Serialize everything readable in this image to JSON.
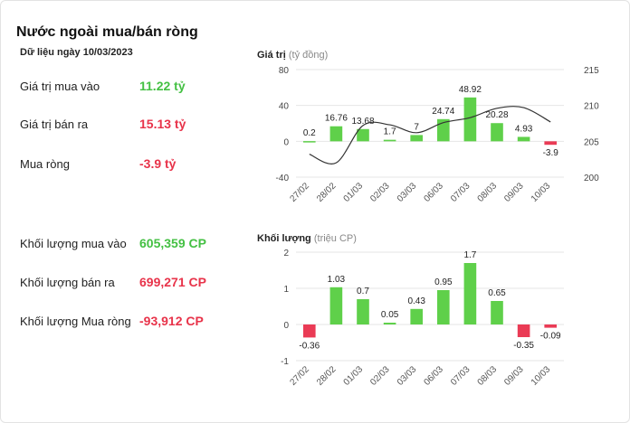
{
  "title": "Nước ngoài mua/bán ròng",
  "date_label": "Dữ liệu ngày 10/03/2023",
  "stats": [
    {
      "label": "Giá trị mua vào",
      "value": "11.22 tỷ",
      "tone": "pos"
    },
    {
      "label": "Giá trị bán ra",
      "value": "15.13 tỷ",
      "tone": "neg"
    },
    {
      "label": "Mua ròng",
      "value": "-3.9 tỷ",
      "tone": "neg"
    },
    {
      "label": "Khối lượng mua vào",
      "value": "605,359 CP",
      "tone": "pos"
    },
    {
      "label": "Khối lượng bán ra",
      "value": "699,271 CP",
      "tone": "neg"
    },
    {
      "label": "Khối lượng Mua ròng",
      "value": "-93,912 CP",
      "tone": "neg"
    }
  ],
  "colors": {
    "positive": "#5fd04a",
    "negative": "#ea3b55",
    "line": "#333333",
    "grid": "#e6e6e6"
  },
  "chart_data": [
    {
      "type": "bar",
      "title": "Giá trị",
      "unit": "(tỷ đồng)",
      "categories": [
        "27/02",
        "28/02",
        "01/03",
        "02/03",
        "03/03",
        "06/03",
        "07/03",
        "08/03",
        "09/03",
        "10/03"
      ],
      "values": [
        0.2,
        16.76,
        13.68,
        1.7,
        7,
        24.74,
        48.92,
        20.28,
        4.93,
        -3.9
      ],
      "value_labels": [
        "0.2",
        "16.76",
        "13.68",
        "1.7",
        "7",
        "24.74",
        "48.92",
        "20.28",
        "4.93",
        "-3.9"
      ],
      "ylim": [
        -40,
        80
      ],
      "yticks": [
        -40,
        0,
        40,
        80
      ],
      "y2lim": [
        200,
        215
      ],
      "y2ticks": [
        200,
        205,
        210,
        215
      ],
      "line_series": {
        "values": [
          203.2,
          202,
          207.2,
          207.3,
          206.2,
          207.6,
          208.3,
          209.6,
          209.7,
          207.7
        ]
      },
      "grid": true
    },
    {
      "type": "bar",
      "title": "Khối lượng",
      "unit": "(triệu CP)",
      "categories": [
        "27/02",
        "28/02",
        "01/03",
        "02/03",
        "03/03",
        "06/03",
        "07/03",
        "08/03",
        "09/03",
        "10/03"
      ],
      "values": [
        -0.36,
        1.03,
        0.7,
        0.05,
        0.43,
        0.95,
        1.7,
        0.65,
        -0.35,
        -0.09
      ],
      "value_labels": [
        "-0.36",
        "1.03",
        "0.7",
        "0.05",
        "0.43",
        "0.95",
        "1.7",
        "0.65",
        "-0.35",
        "-0.09"
      ],
      "ylim": [
        -1,
        2
      ],
      "yticks": [
        -1,
        0,
        1,
        2
      ],
      "grid": true
    }
  ]
}
